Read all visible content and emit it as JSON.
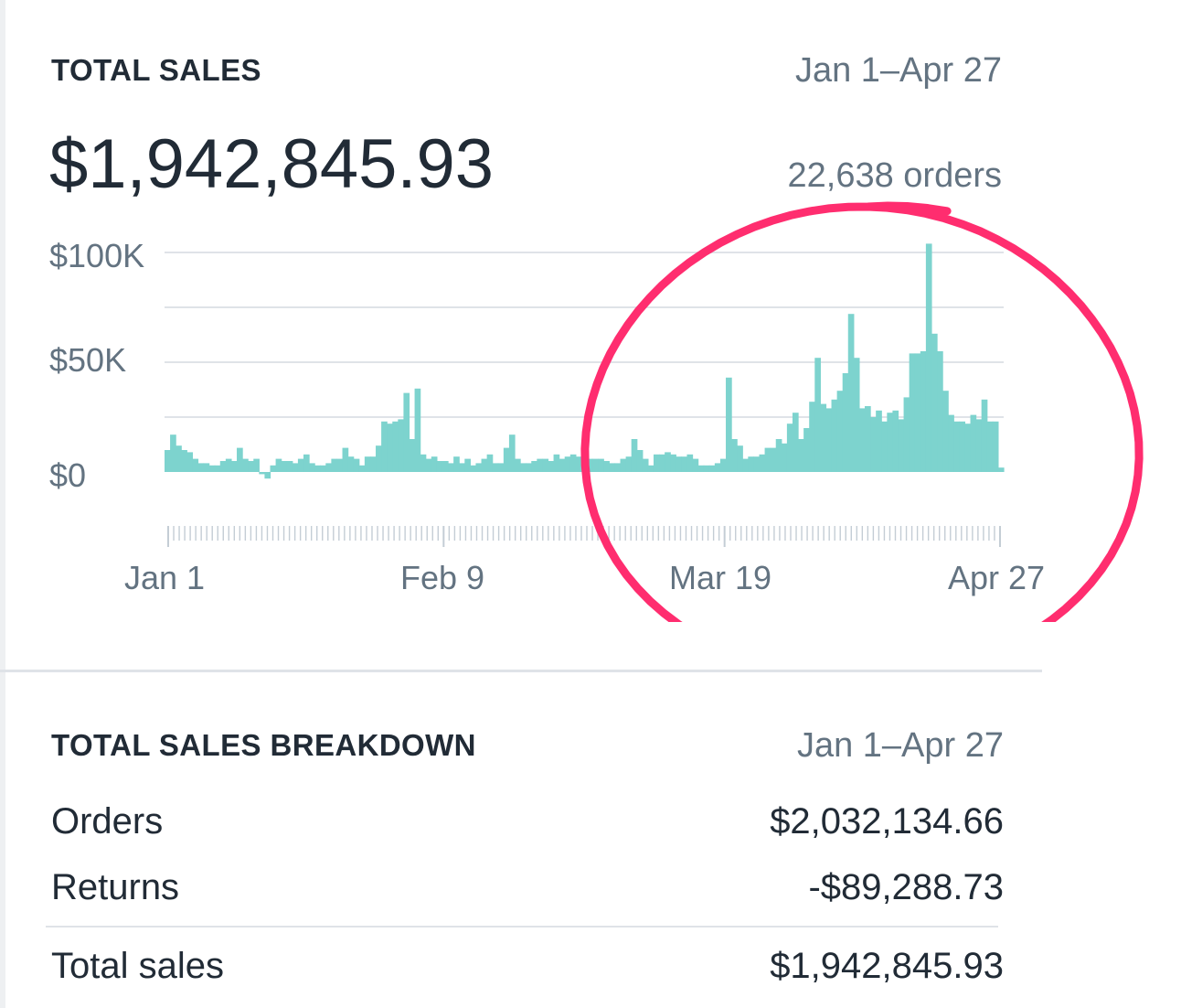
{
  "total_sales": {
    "title": "TOTAL SALES",
    "date_range": "Jan 1–Apr 27",
    "amount": "$1,942,845.93",
    "orders": "22,638 orders"
  },
  "chart_data": {
    "type": "bar",
    "y_ticks": [
      "$100K",
      "$50K",
      "$0"
    ],
    "x_ticks": [
      "Jan 1",
      "Feb 9",
      "Mar 19",
      "Apr 27"
    ],
    "ylim": [
      -5000,
      100000
    ],
    "grid": true,
    "bar_color": "#7dd3ce",
    "values": [
      10,
      17,
      12,
      10,
      9,
      6,
      4,
      4,
      3,
      3,
      5,
      6,
      5,
      11,
      6,
      5,
      6,
      -1,
      -3,
      3,
      6,
      5,
      5,
      4,
      6,
      8,
      4,
      3,
      3,
      4,
      6,
      6,
      11,
      7,
      6,
      3,
      7,
      7,
      12,
      23,
      22,
      23,
      24,
      36,
      15,
      38,
      8,
      6,
      7,
      5,
      5,
      4,
      7,
      4,
      6,
      3,
      4,
      6,
      8,
      4,
      4,
      11,
      17,
      6,
      4,
      4,
      5,
      6,
      6,
      5,
      8,
      6,
      7,
      8,
      7,
      6,
      6,
      6,
      6,
      5,
      4,
      4,
      6,
      7,
      15,
      10,
      6,
      3,
      8,
      8,
      9,
      8,
      7,
      7,
      8,
      6,
      3,
      3,
      3,
      4,
      6,
      43,
      15,
      12,
      6,
      7,
      7,
      8,
      11,
      11,
      15,
      13,
      22,
      27,
      15,
      20,
      32,
      52,
      31,
      29,
      33,
      37,
      45,
      72,
      52,
      29,
      30,
      25,
      28,
      23,
      27,
      28,
      24,
      34,
      54,
      54,
      55,
      104,
      63,
      55,
      37,
      26,
      23,
      23,
      22,
      26,
      24,
      33,
      23,
      23,
      2
    ]
  },
  "breakdown": {
    "title": "TOTAL SALES BREAKDOWN",
    "date_range": "Jan 1–Apr 27",
    "rows": [
      {
        "label": "Orders",
        "value": "$2,032,134.66"
      },
      {
        "label": "Returns",
        "value": "-$89,288.73"
      },
      {
        "label": "Total sales",
        "value": "$1,942,845.93"
      }
    ]
  },
  "annotation": {
    "color": "#ff2d6f",
    "shape": "hand-drawn-ellipse"
  }
}
